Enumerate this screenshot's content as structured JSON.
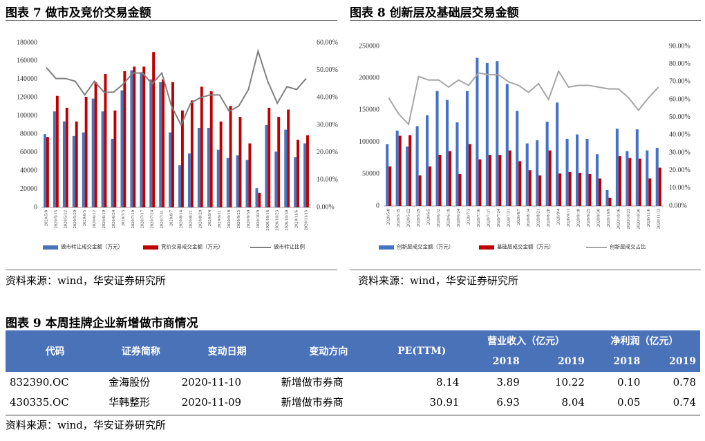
{
  "chart_data": [
    {
      "type": "bar",
      "title": "图表 7 做市及竞价交易金额",
      "categories": [
        "2020/5/8",
        "2020/5/15",
        "2020/5/22",
        "2020/5/29",
        "2020/6/5",
        "2020/6/12",
        "2020/6/19",
        "2020/6/24",
        "2020/7/3",
        "2020/7/10",
        "2020/7/17",
        "2020/7/24",
        "2020/7/31",
        "2020/8/7",
        "2020/8/14",
        "2020/8/21",
        "2020/8/28",
        "2020/9/4",
        "2020/9/11",
        "2020/9/18",
        "2020/9/25",
        "2020/9/30",
        "2020/10/9",
        "2020/10/16",
        "2020/10/23",
        "2020/10/30",
        "2020/11/6",
        "2020/11/13"
      ],
      "series": [
        {
          "name": "做市转让成交金额（万元）",
          "type": "bar",
          "color": "#4a72b8",
          "values": [
            80000,
            105000,
            94000,
            78000,
            82000,
            119000,
            105000,
            75000,
            128000,
            150000,
            148000,
            140000,
            137000,
            82000,
            46000,
            59000,
            87000,
            87000,
            63000,
            54000,
            57000,
            52000,
            21000,
            90000,
            61000,
            85000,
            55000,
            70000
          ]
        },
        {
          "name": "竞价交易成交金额（万元）",
          "type": "bar",
          "color": "#c00000",
          "values": [
            77000,
            122000,
            109000,
            94000,
            121000,
            137000,
            146000,
            106000,
            149000,
            154000,
            154000,
            170000,
            140000,
            137000,
            106000,
            117000,
            132000,
            127000,
            94000,
            111000,
            99000,
            70000,
            16000,
            109000,
            99000,
            107000,
            74000,
            79000
          ]
        },
        {
          "name": "做市转让比例",
          "type": "line",
          "axis": "y2",
          "color": "#7f7f7f",
          "values": [
            51,
            47,
            47,
            46,
            41,
            46,
            42,
            42,
            45,
            49,
            49,
            45,
            49,
            37,
            30,
            38,
            40,
            41,
            41,
            35,
            37,
            43,
            57,
            46,
            38,
            44,
            43,
            47
          ]
        }
      ],
      "ylim": [
        0,
        180000
      ],
      "yticks": [
        0,
        20000,
        40000,
        60000,
        80000,
        100000,
        120000,
        140000,
        160000,
        180000
      ],
      "y2lim": [
        0,
        60
      ],
      "y2ticks": [
        {
          "value": 0,
          "label": "0.00%"
        },
        {
          "value": 10,
          "label": "10.00%"
        },
        {
          "value": 20,
          "label": "20.00%"
        },
        {
          "value": 30,
          "label": "30.00%"
        },
        {
          "value": 40,
          "label": "40.00%"
        },
        {
          "value": 50,
          "label": "50.00%"
        },
        {
          "value": 60,
          "label": "60.00%"
        }
      ],
      "source": "资料来源：wind，华安证券研究所"
    },
    {
      "type": "bar",
      "title": "图表 8 创新层及基础层交易金额",
      "categories": [
        "2020/5/8",
        "2020/5/15",
        "2020/5/22",
        "2020/5/29",
        "2020/6/5",
        "2020/6/12",
        "2020/6/19",
        "2020/6/24",
        "2020/7/3",
        "2020/7/10",
        "2020/7/17",
        "2020/7/24",
        "2020/7/31",
        "2020/8/7",
        "2020/8/14",
        "2020/8/21",
        "2020/8/28",
        "2020/9/4",
        "2020/9/11",
        "2020/9/18",
        "2020/9/25",
        "2020/9/30",
        "2020/10/9",
        "2020/10/16",
        "2020/10/23",
        "2020/10/30",
        "2020/11/6",
        "2020/11/13"
      ],
      "series": [
        {
          "name": "创新层成交金额（万元）",
          "type": "bar",
          "color": "#4472c4",
          "values": [
            97000,
            118000,
            93000,
            125000,
            142000,
            180000,
            166000,
            131000,
            180000,
            232000,
            224000,
            227000,
            191000,
            149000,
            98000,
            103000,
            132000,
            162000,
            105000,
            112000,
            105000,
            81000,
            25000,
            121000,
            86000,
            120000,
            87000,
            91000
          ]
        },
        {
          "name": "基础层成交金额（万元）",
          "type": "bar",
          "color": "#c00000",
          "values": [
            62000,
            110000,
            111000,
            48000,
            62000,
            80000,
            86000,
            50000,
            97000,
            73000,
            80000,
            80000,
            87000,
            70000,
            56000,
            48000,
            87000,
            51000,
            53000,
            52000,
            50000,
            43000,
            13000,
            78000,
            75000,
            74000,
            43000,
            60000
          ]
        },
        {
          "name": "创新层成交占比",
          "type": "line",
          "axis": "y2",
          "color": "#a5a5a5",
          "values": [
            61,
            52,
            46,
            73,
            71,
            71,
            67,
            71,
            68,
            75,
            74,
            74,
            70,
            68,
            64,
            69,
            60,
            76,
            67,
            68,
            68,
            67,
            66,
            66,
            61,
            54,
            61,
            67
          ]
        }
      ],
      "ylim": [
        0,
        250000
      ],
      "yticks": [
        0,
        50000,
        100000,
        150000,
        200000,
        250000
      ],
      "y2lim": [
        0,
        90
      ],
      "y2ticks": [
        {
          "value": 0,
          "label": "0.00%"
        },
        {
          "value": 10,
          "label": "10.00%"
        },
        {
          "value": 20,
          "label": "20.00%"
        },
        {
          "value": 30,
          "label": "30.00%"
        },
        {
          "value": 40,
          "label": "40.00%"
        },
        {
          "value": 50,
          "label": "50.00%"
        },
        {
          "value": 60,
          "label": "60.00%"
        },
        {
          "value": 70,
          "label": "70.00%"
        },
        {
          "value": 80,
          "label": "80.00%"
        },
        {
          "value": 90,
          "label": "90.00%"
        }
      ],
      "source": "资料来源：wind，华安证券研究所"
    }
  ],
  "table": {
    "title": "图表 9 本周挂牌企业新增做市商情况",
    "headers": [
      "代码",
      "证券简称",
      "变动日期",
      "变动方向",
      "PE(TTM)"
    ],
    "groups": [
      {
        "label": "营业收入（亿元）",
        "years": [
          "2018",
          "2019"
        ]
      },
      {
        "label": "净利润（亿元）",
        "years": [
          "2018",
          "2019"
        ]
      }
    ],
    "rows": [
      [
        "832390.OC",
        "金海股份",
        "2020-11-10",
        "新增做市券商",
        "8.14",
        "3.89",
        "10.22",
        "0.10",
        "0.78"
      ],
      [
        "430335.OC",
        "华韩整形",
        "2020-11-09",
        "新增做市券商",
        "30.91",
        "6.93",
        "8.04",
        "0.05",
        "0.74"
      ]
    ],
    "source": "资料来源：wind，华安证券研究所"
  }
}
